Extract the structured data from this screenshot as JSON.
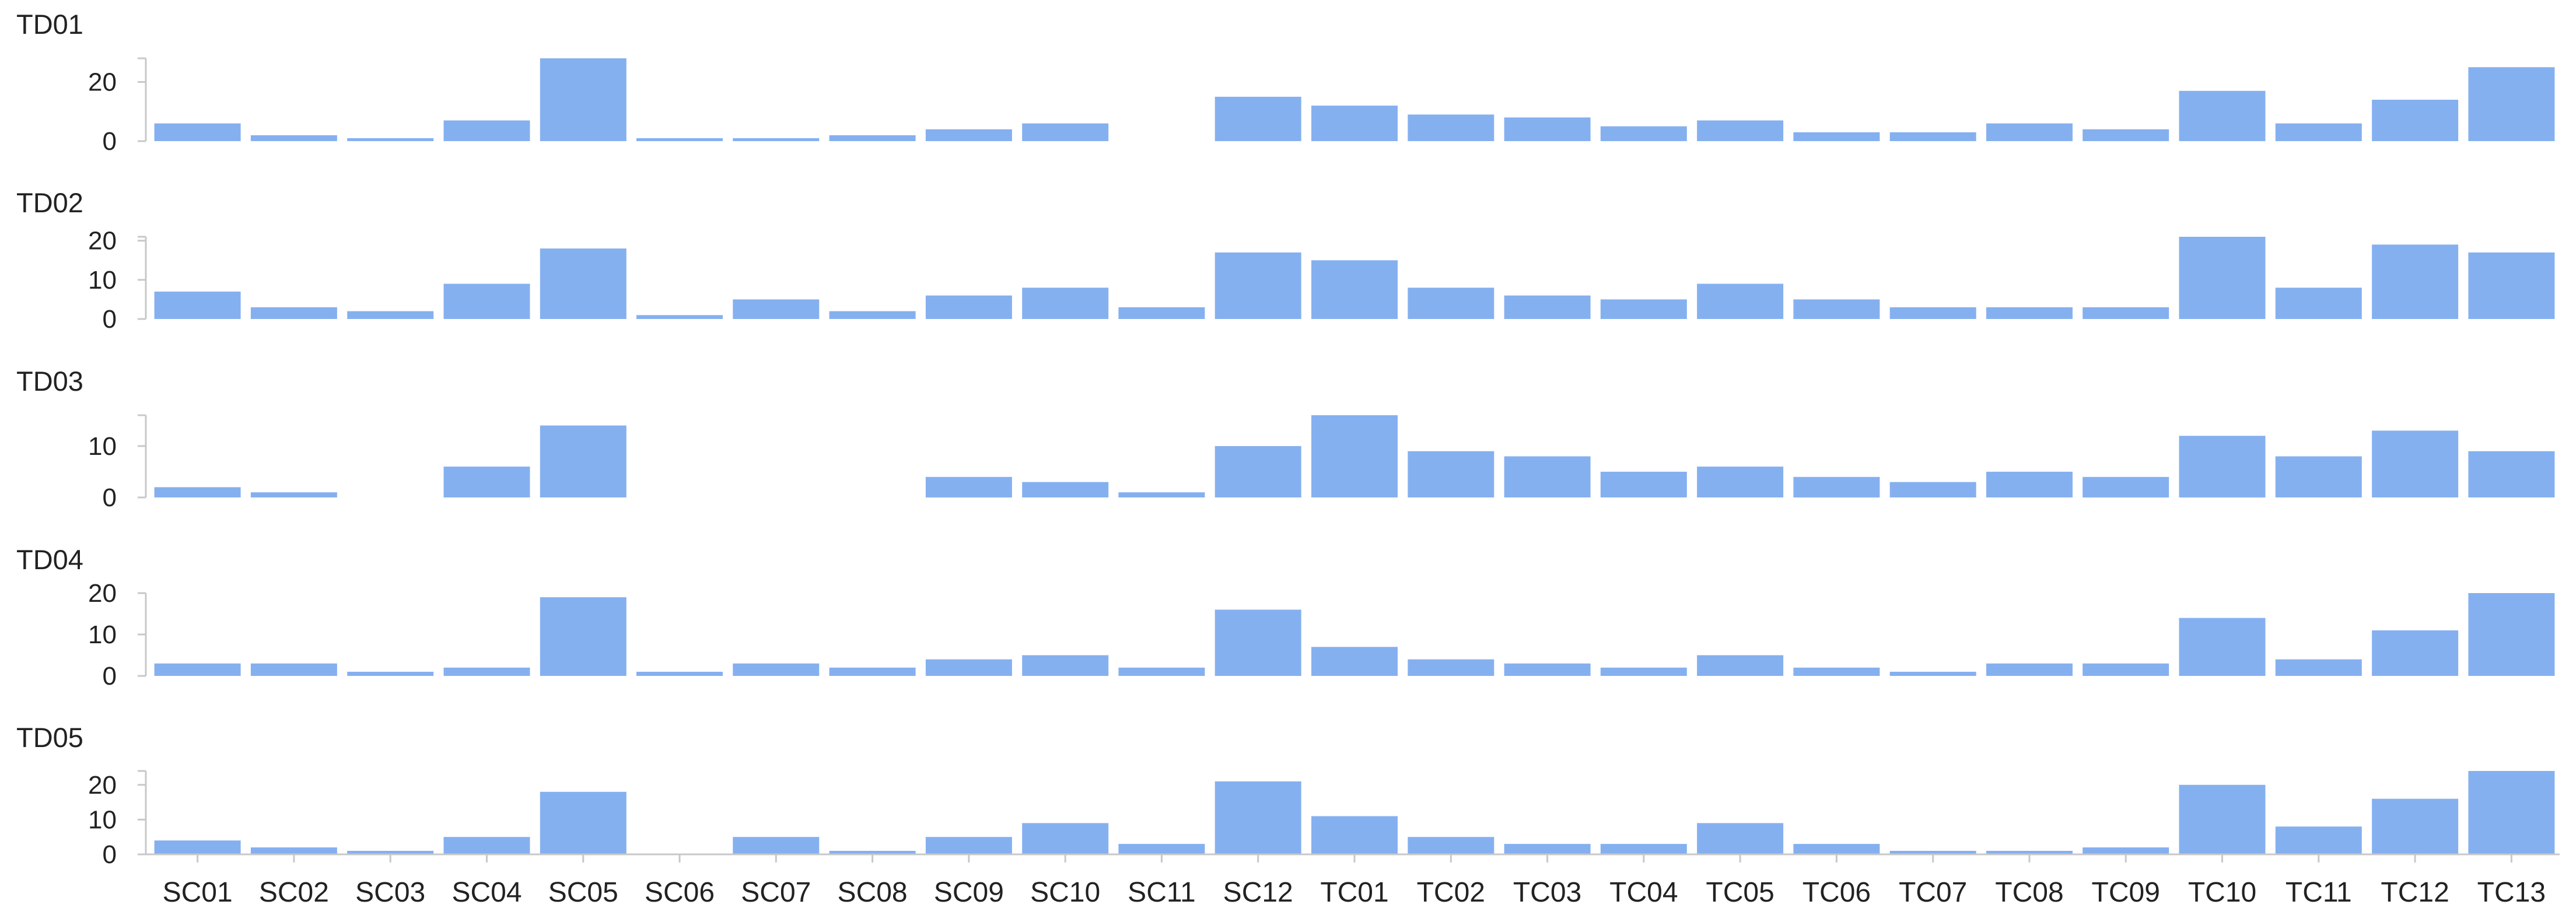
{
  "chart_data": {
    "type": "bar",
    "categories": [
      "SC01",
      "SC02",
      "SC03",
      "SC04",
      "SC05",
      "SC06",
      "SC07",
      "SC08",
      "SC09",
      "SC10",
      "SC11",
      "SC12",
      "TC01",
      "TC02",
      "TC03",
      "TC04",
      "TC05",
      "TC06",
      "TC07",
      "TC08",
      "TC09",
      "TC10",
      "TC11",
      "TC12",
      "TC13"
    ],
    "bar_color": "#85b0f0",
    "axis_color": "#c8c8c8",
    "grid": false,
    "legend": "none",
    "panels": [
      {
        "title": "TD01",
        "ylim": [
          0,
          28
        ],
        "yticks": [
          0,
          20
        ],
        "values": [
          6,
          2,
          1,
          7,
          28,
          1,
          1,
          2,
          4,
          6,
          0,
          15,
          12,
          9,
          8,
          5,
          7,
          3,
          3,
          6,
          4,
          17,
          6,
          14,
          25
        ]
      },
      {
        "title": "TD02",
        "ylim": [
          0,
          21
        ],
        "yticks": [
          0,
          10,
          20
        ],
        "values": [
          7,
          3,
          2,
          9,
          18,
          1,
          5,
          2,
          6,
          8,
          3,
          17,
          15,
          8,
          6,
          5,
          9,
          5,
          3,
          3,
          3,
          21,
          8,
          19,
          17
        ]
      },
      {
        "title": "TD03",
        "ylim": [
          0,
          16
        ],
        "yticks": [
          0,
          10
        ],
        "values": [
          2,
          1,
          0,
          6,
          14,
          0,
          0,
          0,
          4,
          3,
          1,
          10,
          16,
          9,
          8,
          5,
          6,
          4,
          3,
          5,
          4,
          12,
          8,
          13,
          9
        ]
      },
      {
        "title": "TD04",
        "ylim": [
          0,
          20
        ],
        "yticks": [
          0,
          10,
          20
        ],
        "values": [
          3,
          3,
          1,
          2,
          19,
          1,
          3,
          2,
          4,
          5,
          2,
          16,
          7,
          4,
          3,
          2,
          5,
          2,
          1,
          3,
          3,
          14,
          4,
          11,
          20
        ]
      },
      {
        "title": "TD05",
        "ylim": [
          0,
          24
        ],
        "yticks": [
          0,
          10,
          20
        ],
        "values": [
          4,
          2,
          1,
          5,
          18,
          0,
          5,
          1,
          5,
          9,
          3,
          21,
          11,
          5,
          3,
          3,
          9,
          3,
          1,
          1,
          2,
          20,
          8,
          16,
          24
        ]
      }
    ]
  }
}
